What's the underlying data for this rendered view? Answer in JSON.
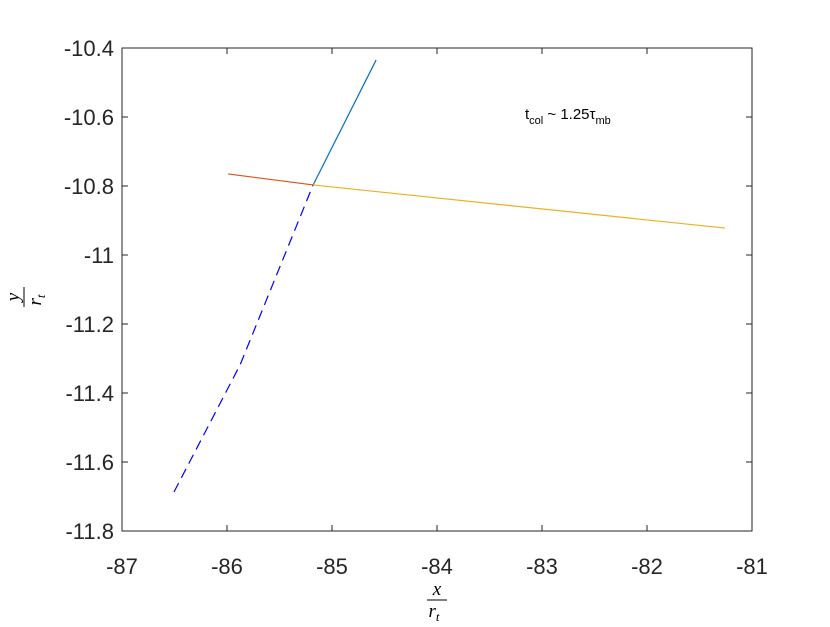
{
  "chart_data": {
    "type": "line",
    "annotation": [
      "t",
      "col",
      " ~ 1.25τ",
      "mb"
    ],
    "xlabel": {
      "numerator": "x",
      "denominator": "r",
      "denominator_sub": "t"
    },
    "ylabel": {
      "numerator": "y",
      "denominator": "r",
      "denominator_sub": "t"
    },
    "xlim": [
      -87,
      -81
    ],
    "xticks": [
      -87,
      -86,
      -85,
      -84,
      -83,
      -82,
      -81
    ],
    "ylim": [
      -11.8,
      -10.4
    ],
    "yticks": [
      -10.4,
      -10.6,
      -10.8,
      -11,
      -11.2,
      -11.4,
      -11.6,
      -11.8
    ],
    "series": [
      {
        "color": "#0072bd",
        "dash": "solid",
        "x": [
          -85.18,
          -84.58
        ],
        "y": [
          -10.797,
          -10.435
        ]
      },
      {
        "color": "#0000ff",
        "dash": "dashed",
        "x": [
          -86.505,
          -85.876,
          -85.18
        ],
        "y": [
          -11.687,
          -11.319,
          -10.797
        ]
      },
      {
        "color": "#d95319",
        "dash": "solid",
        "x": [
          -85.99,
          -85.18
        ],
        "y": [
          -10.765,
          -10.797
        ]
      },
      {
        "color": "#edb120",
        "dash": "solid",
        "x": [
          -85.18,
          -81.257
        ],
        "y": [
          -10.797,
          -10.922
        ]
      }
    ]
  }
}
